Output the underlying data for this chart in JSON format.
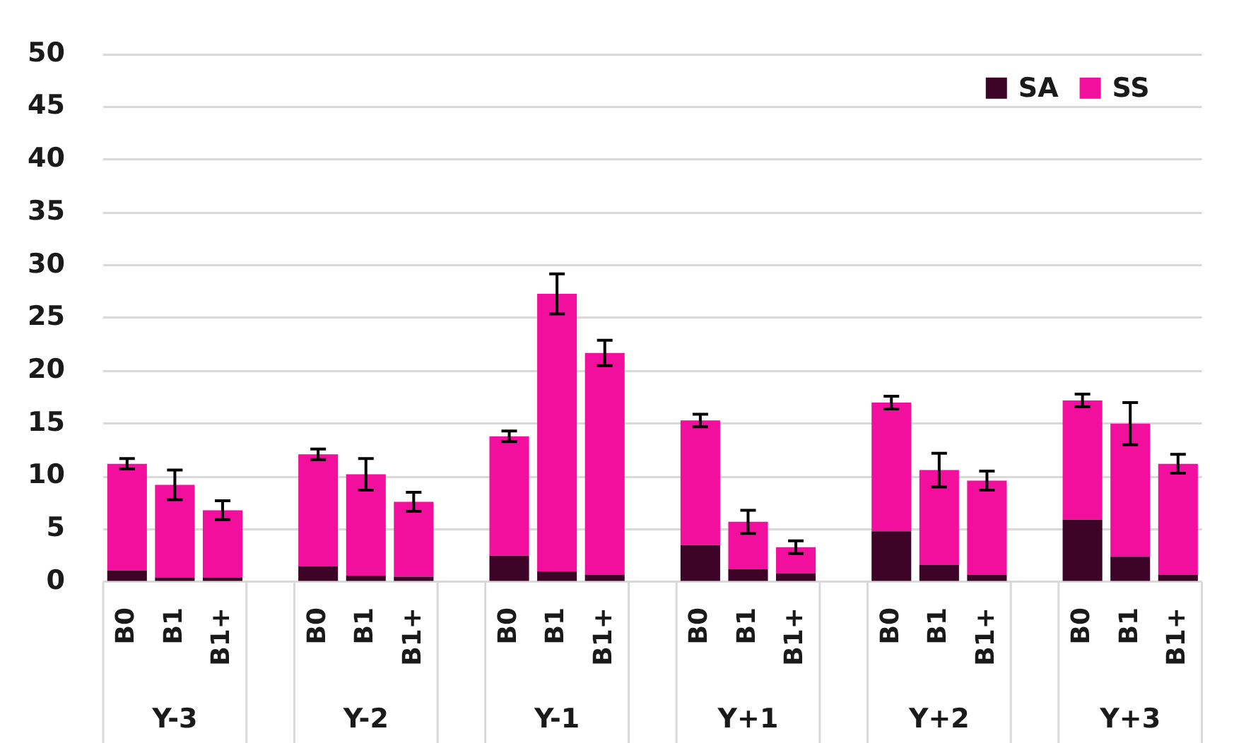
{
  "chart_data": {
    "type": "bar",
    "stacked": true,
    "categories": [
      "B0",
      "B1",
      "B1+",
      null,
      "B0",
      "B1",
      "B1+",
      null,
      "B0",
      "B1",
      "B1+",
      null,
      "B0",
      "B1",
      "B1+",
      null,
      "B0",
      "B1",
      "B1+",
      null,
      "B0",
      "B1",
      "B1+"
    ],
    "series": [
      {
        "name": "SA",
        "color": "#3d0428",
        "values": [
          1.1,
          0.4,
          0.4,
          null,
          1.5,
          0.6,
          0.5,
          null,
          2.5,
          1.0,
          0.7,
          null,
          3.5,
          1.2,
          0.8,
          null,
          4.8,
          1.6,
          0.7,
          null,
          5.9,
          2.4,
          0.7
        ]
      },
      {
        "name": "SS",
        "color": "#f20f9e",
        "values": [
          10.1,
          8.8,
          6.4,
          null,
          10.6,
          9.6,
          7.1,
          null,
          11.3,
          26.3,
          21.0,
          null,
          11.8,
          4.5,
          2.5,
          null,
          12.2,
          9.0,
          8.9,
          null,
          11.3,
          12.6,
          10.5
        ],
        "errors": [
          0.5,
          1.4,
          0.9,
          null,
          0.5,
          1.5,
          0.9,
          null,
          0.5,
          1.9,
          1.2,
          null,
          0.6,
          1.1,
          0.6,
          null,
          0.6,
          1.6,
          0.9,
          null,
          0.6,
          2.0,
          0.9
        ]
      }
    ],
    "ylim": [
      0,
      50
    ],
    "yticks": [
      0,
      5,
      10,
      15,
      20,
      25,
      30,
      35,
      40,
      45,
      50
    ],
    "grid": "y",
    "legend": "top right",
    "annotations": [
      "Y-3",
      "Y-2",
      "Y-1",
      "Y+1",
      "Y+2",
      "Y+3"
    ]
  }
}
